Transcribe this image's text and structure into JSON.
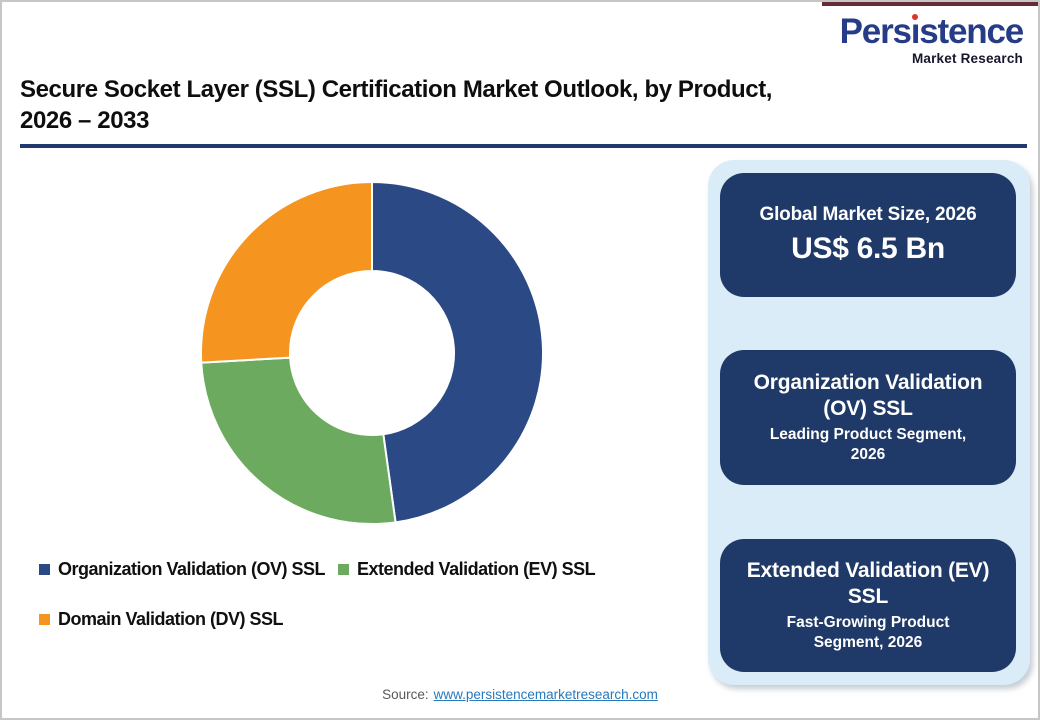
{
  "header": {
    "logo": {
      "word_pre_i": "Pers",
      "dotless_i": "ı",
      "word_post_i": "stence",
      "subtitle": "Market Research",
      "brand_blue": "#273c87",
      "dot_red": "#e03131"
    },
    "top_strip_color": "#662b36"
  },
  "title": {
    "line1": "Secure Socket Layer (SSL) Certification Market Outlook, by Product,",
    "line2": "2026 – 2033",
    "underline_color": "#203a70"
  },
  "chart_data": {
    "type": "pie",
    "subtype": "donut",
    "title": "Secure Socket Layer (SSL) Certification Market Outlook, by Product, 2026 – 2033",
    "categories": [
      "Organization Validation (OV) SSL",
      "Extended Validation (EV) SSL",
      "Domain Validation (DV) SSL"
    ],
    "values": [
      47.8,
      26.3,
      25.9
    ],
    "values_note": "% share estimated from arc angles; chart shows no data labels",
    "colors": [
      "#2b4a85",
      "#6cab5f",
      "#f5941f"
    ],
    "start_angle_deg": 0,
    "clockwise": true,
    "inner_radius_ratio": 0.48,
    "slice_gap_stroke": "#ffffff",
    "legend_position": "bottom-left",
    "data_labels": "none"
  },
  "sidebar": {
    "bg": "#d9ecf8",
    "card_bg": "#1f3a68",
    "cards": [
      {
        "title": "Global Market Size, 2026",
        "value": "US$ 6.5 Bn"
      },
      {
        "title": "Organization Validation (OV) SSL",
        "subtitle": "Leading Product Segment, 2026"
      },
      {
        "title": "Extended Validation (EV) SSL",
        "subtitle": "Fast-Growing Product Segment, 2026"
      }
    ]
  },
  "footer": {
    "source_label": "Source:",
    "source_link": "www.persistencemarketresearch.com"
  }
}
